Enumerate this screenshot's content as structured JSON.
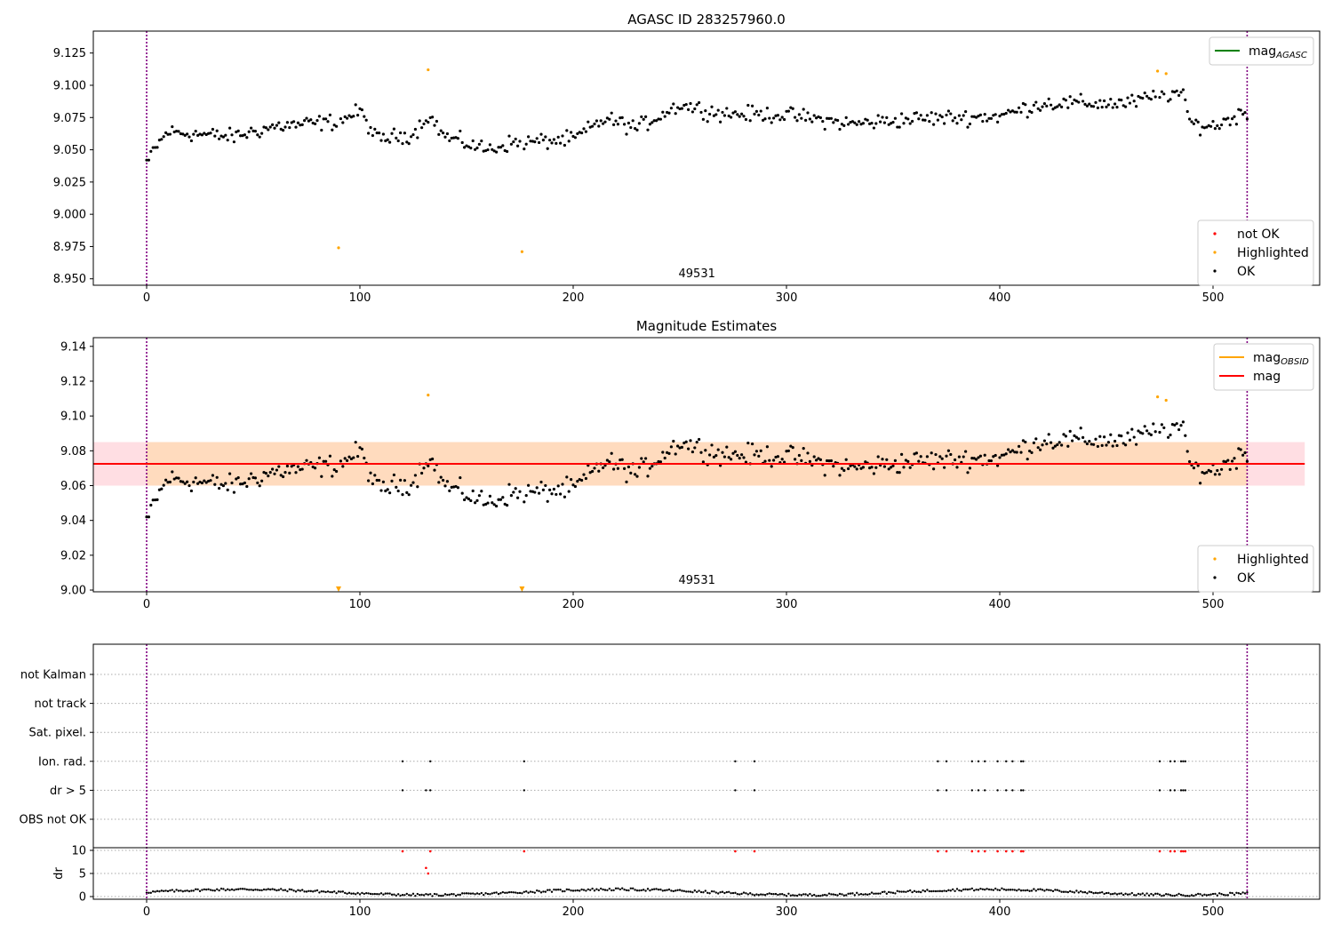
{
  "figure": {
    "colors": {
      "ok": "#000000",
      "highlighted": "#ffa500",
      "not_ok": "#ff0000",
      "mag_line": "#ff0000",
      "mag_obsid": "#ffa500",
      "mag_agasc": "#008000",
      "band_outer": "#ffb6c1",
      "band_inner": "#ffdab9",
      "vline": "#800080"
    }
  },
  "chart_data": [
    {
      "type": "scatter",
      "title": "AGASC ID 283257960.0",
      "annotation": "49531",
      "xlim": [
        -25,
        550
      ],
      "ylim": [
        8.945,
        9.142
      ],
      "xticks": [
        0,
        100,
        200,
        300,
        400,
        500
      ],
      "yticks": [
        8.95,
        8.975,
        9.0,
        9.025,
        9.05,
        9.075,
        9.1,
        9.125
      ],
      "vlines": [
        0,
        516
      ],
      "legend_upper": {
        "placement": "top-right",
        "entries": [
          {
            "label": "mag",
            "sub": "AGASC",
            "type": "line",
            "color": "green"
          }
        ]
      },
      "legend_lower": {
        "placement": "bottom-right",
        "entries": [
          {
            "label": "not OK",
            "type": "dot",
            "color": "red"
          },
          {
            "label": "Highlighted",
            "type": "dot",
            "color": "orange"
          },
          {
            "label": "OK",
            "type": "dot",
            "color": "black"
          }
        ]
      },
      "highlighted": [
        [
          90,
          8.974
        ],
        [
          132,
          9.112
        ],
        [
          176,
          8.971
        ],
        [
          474,
          9.111
        ],
        [
          478,
          9.109
        ]
      ],
      "ok_series": "mag estimates, 517 points from x=0 to 516, ranging 9.04-9.10, rising trend"
    },
    {
      "type": "scatter",
      "title": "Magnitude Estimates",
      "annotation": "49531",
      "xlim": [
        -25,
        550
      ],
      "ylim": [
        8.999,
        9.145
      ],
      "xticks": [
        0,
        100,
        200,
        300,
        400,
        500
      ],
      "yticks": [
        9.0,
        9.02,
        9.04,
        9.06,
        9.08,
        9.1,
        9.12,
        9.14
      ],
      "vlines": [
        0,
        516
      ],
      "mag": 9.0725,
      "band_outer": [
        9.06,
        9.085
      ],
      "band_inner": [
        9.06,
        9.085
      ],
      "band_x": [
        -25,
        543
      ],
      "legend_upper": {
        "placement": "top-right",
        "entries": [
          {
            "label": "mag",
            "sub": "OBSID",
            "type": "line",
            "color": "orange"
          },
          {
            "label": "mag",
            "type": "line",
            "color": "red"
          }
        ]
      },
      "legend_lower": {
        "placement": "bottom-right",
        "entries": [
          {
            "label": "Highlighted",
            "type": "dot",
            "color": "orange"
          },
          {
            "label": "OK",
            "type": "dot",
            "color": "black"
          }
        ]
      },
      "highlighted": [
        [
          132,
          9.112
        ],
        [
          474,
          9.111
        ],
        [
          478,
          9.109
        ]
      ],
      "clipped_markers": [
        90,
        176
      ]
    },
    {
      "type": "scatter",
      "title": "",
      "xlim": [
        -25,
        550
      ],
      "xticks": [
        0,
        100,
        200,
        300,
        400,
        500
      ],
      "vlines": [
        0,
        516
      ],
      "flag_labels": [
        "not Kalman",
        "not track",
        "Sat. pixel.",
        "Ion. rad.",
        "dr > 5",
        "OBS not OK"
      ],
      "ion_rad_x": [
        120,
        133,
        177,
        276,
        285,
        371,
        375,
        387,
        390,
        393,
        399,
        403,
        406,
        410,
        411,
        475,
        480,
        482,
        485,
        486,
        487
      ],
      "dr5_x": [
        120,
        131,
        133,
        177,
        276,
        285,
        371,
        375,
        387,
        390,
        393,
        399,
        403,
        406,
        410,
        411,
        475,
        480,
        482,
        485,
        486,
        487
      ],
      "dr_ylabel": "dr",
      "dr_yticks": [
        0,
        5,
        10
      ],
      "dr_ylim": [
        -0.5,
        10.5
      ],
      "dr_red": [
        [
          120,
          9.8
        ],
        [
          133,
          9.8
        ],
        [
          177,
          9.8
        ],
        [
          276,
          9.8
        ],
        [
          285,
          9.8
        ],
        [
          371,
          9.8
        ],
        [
          375,
          9.8
        ],
        [
          387,
          9.8
        ],
        [
          390,
          9.8
        ],
        [
          393,
          9.8
        ],
        [
          399,
          9.8
        ],
        [
          403,
          9.8
        ],
        [
          406,
          9.8
        ],
        [
          410,
          9.8
        ],
        [
          411,
          9.8
        ],
        [
          475,
          9.8
        ],
        [
          480,
          9.8
        ],
        [
          482,
          9.8
        ],
        [
          485,
          9.8
        ],
        [
          486,
          9.8
        ],
        [
          487,
          9.8
        ],
        [
          131,
          6.2
        ],
        [
          132,
          5.0
        ]
      ]
    }
  ]
}
